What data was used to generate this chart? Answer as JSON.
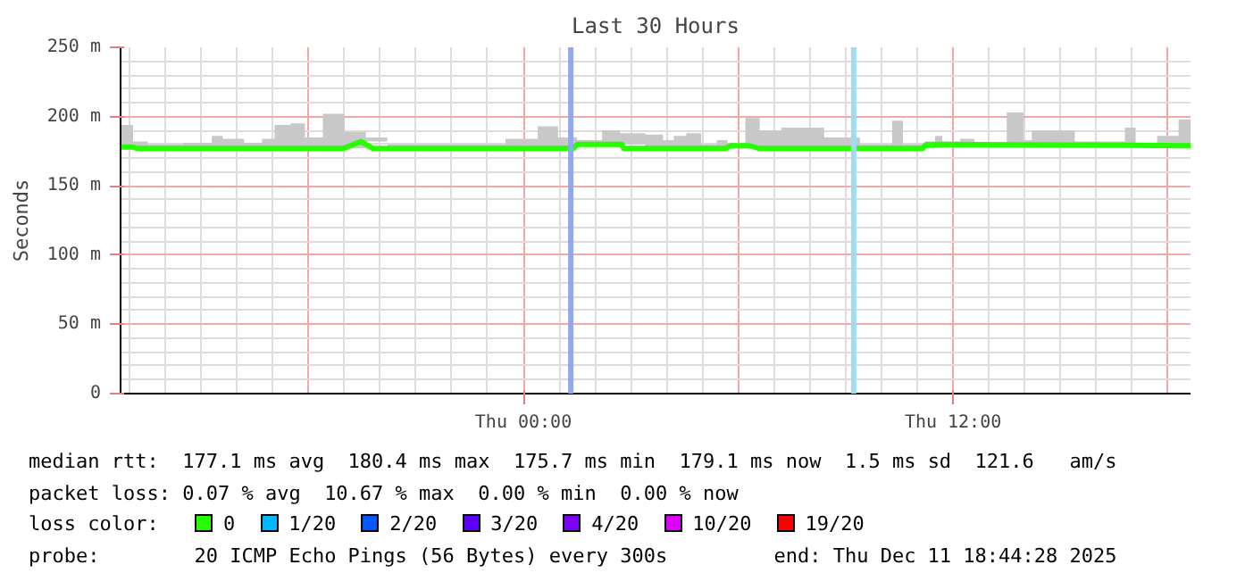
{
  "chart_data": {
    "type": "line",
    "title": "Last 30 Hours",
    "ylabel": "Seconds",
    "xlim": [
      "2025-12-10T12:45",
      "2025-12-11T18:38"
    ],
    "xticks": [
      {
        "value": "2025-12-10T18:00",
        "label": null
      },
      {
        "value": "2025-12-11T00:00",
        "label": "Thu 00:00"
      },
      {
        "value": "2025-12-11T06:00",
        "label": null
      },
      {
        "value": "2025-12-11T12:00",
        "label": "Thu 12:00"
      },
      {
        "value": "2025-12-11T18:00",
        "label": null
      }
    ],
    "ylim": [
      0,
      250
    ],
    "yticks": [
      {
        "value": 0,
        "label": "0"
      },
      {
        "value": 50,
        "label": "50 m"
      },
      {
        "value": 100,
        "label": "100 m"
      },
      {
        "value": 150,
        "label": "150 m"
      },
      {
        "value": 200,
        "label": "200 m"
      },
      {
        "value": 250,
        "label": "250 m"
      }
    ],
    "grid": true,
    "legend": "bottom",
    "legend_title": "loss color:",
    "series": [
      {
        "type": "area",
        "color": "#c8c8c8",
        "x": [
          "2025-12-10T12:45",
          "2025-12-10T13:06",
          "2025-12-10T13:30",
          "2025-12-10T14:30",
          "2025-12-10T15:18",
          "2025-12-10T15:36",
          "2025-12-10T16:12",
          "2025-12-10T16:42",
          "2025-12-10T17:03",
          "2025-12-10T17:30",
          "2025-12-10T17:54",
          "2025-12-10T18:24",
          "2025-12-10T19:00",
          "2025-12-10T19:36",
          "2025-12-10T20:12",
          "2025-12-10T20:36",
          "2025-12-10T22:00",
          "2025-12-10T23:30",
          "2025-12-11T00:24",
          "2025-12-11T00:58",
          "2025-12-11T01:30",
          "2025-12-11T02:12",
          "2025-12-11T02:42",
          "2025-12-11T03:24",
          "2025-12-11T03:54",
          "2025-12-11T04:12",
          "2025-12-11T04:33",
          "2025-12-11T04:58",
          "2025-12-11T05:24",
          "2025-12-11T05:42",
          "2025-12-11T06:12",
          "2025-12-11T06:36",
          "2025-12-11T07:12",
          "2025-12-11T08:24",
          "2025-12-11T08:54",
          "2025-12-11T09:24",
          "2025-12-11T10:18",
          "2025-12-11T10:36",
          "2025-12-11T11:30",
          "2025-12-11T11:42",
          "2025-12-11T12:12",
          "2025-12-11T12:36",
          "2025-12-11T13:30",
          "2025-12-11T13:58",
          "2025-12-11T14:12",
          "2025-12-11T15:24",
          "2025-12-11T16:48",
          "2025-12-11T17:06",
          "2025-12-11T17:42",
          "2025-12-11T18:18",
          "2025-12-11T18:38"
        ],
        "values": [
          194,
          182,
          180,
          181,
          186,
          184,
          181,
          184,
          194,
          195,
          185,
          202,
          189,
          185,
          180,
          180,
          180,
          184,
          193,
          185,
          183,
          190,
          188,
          187,
          183,
          186,
          188,
          180,
          183,
          181,
          199,
          190,
          192,
          185,
          185,
          180,
          197,
          180,
          186,
          182,
          184,
          181,
          203,
          183,
          190,
          182,
          192,
          181,
          186,
          198,
          198
        ]
      },
      {
        "name": "0",
        "color": "#26ff00",
        "x": [
          "2025-12-10T12:45",
          "2025-12-10T13:06",
          "2025-12-10T13:12",
          "2025-12-10T18:58",
          "2025-12-10T19:28",
          "2025-12-10T19:48",
          "2025-12-11T01:24",
          "2025-12-11T01:30",
          "2025-12-11T02:45",
          "2025-12-11T02:48",
          "2025-12-11T05:38",
          "2025-12-11T05:48",
          "2025-12-11T06:18",
          "2025-12-11T06:36",
          "2025-12-11T07:18",
          "2025-12-11T11:09",
          "2025-12-11T11:15",
          "2025-12-11T18:38"
        ],
        "values": [
          178,
          178,
          177,
          177,
          182,
          177,
          177,
          180,
          180,
          177,
          177,
          179,
          179,
          177,
          177,
          177,
          180,
          179
        ]
      },
      {
        "name": "1/20",
        "color": "#00b8ff"
      },
      {
        "name": "2/20",
        "color": "#0059ff"
      },
      {
        "name": "3/20",
        "color": "#5e00ff"
      },
      {
        "name": "4/20",
        "color": "#7e00ff"
      },
      {
        "name": "10/20",
        "color": "#dd00ff"
      },
      {
        "name": "19/20",
        "color": "#ff0000"
      }
    ],
    "bands": [
      {
        "axis": "x",
        "from": "2025-12-11T01:15",
        "to": "2025-12-11T01:24",
        "color": "#8fa8f0"
      },
      {
        "axis": "x",
        "from": "2025-12-11T09:09",
        "to": "2025-12-11T09:18",
        "color": "#a0dcf0"
      }
    ],
    "annotations": [
      "median rtt:  177.1 ms avg  180.4 ms max  175.7 ms min  179.1 ms now  1.5 ms sd  121.6   am/s",
      "packet loss: 0.07 % avg  10.67 % max  0.00 % min  0.00 % now",
      "probe:        20 ICMP Echo Pings (56 Bytes) every 300s",
      "end: Thu Dec 11 18:44:28 2025"
    ]
  }
}
